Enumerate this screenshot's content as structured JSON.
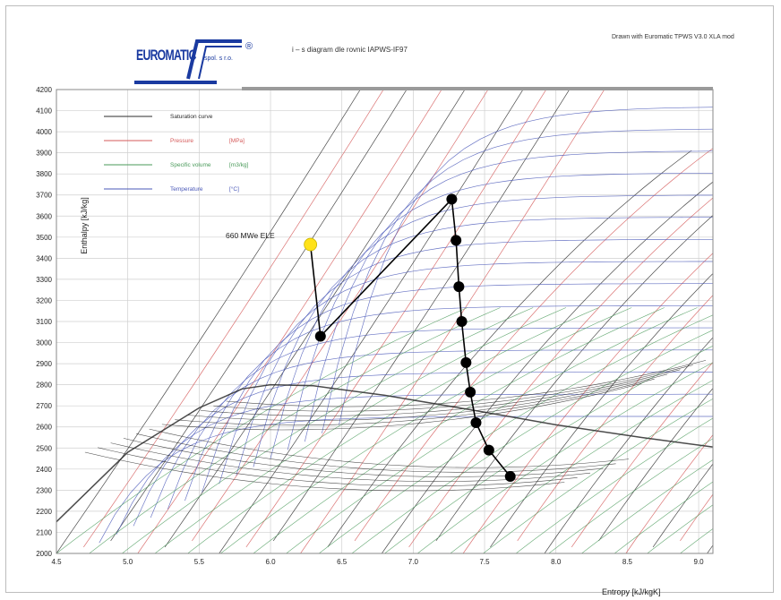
{
  "header": {
    "logo_text": "EUROMATIC",
    "logo_sub": "spol. s r.o.",
    "logo_reg": "®",
    "subtitle": "i – s diagram dle rovnic IAPWS-IF97",
    "credit": "Drawn with Euromatic TPWS V3.0 XLA mod"
  },
  "colors": {
    "line_pressure_black": "#2b2b2b",
    "line_pressure_red": "#d55a5a",
    "line_volume_green": "#4a9a5a",
    "line_temperature_blue": "#4a58b8",
    "process_path": "#000000",
    "highlight_point": "#ffe21a",
    "grid": "#cfcfcf"
  },
  "chart_data": {
    "type": "line",
    "title": "",
    "xlabel": "Entropy [kJ/kgK]",
    "ylabel": "Enthalpy [kJ/kg]",
    "xlim": [
      4.5,
      9.1
    ],
    "ylim": [
      2000,
      4200
    ],
    "x_ticks": [
      "4.5",
      "5.0",
      "5.5",
      "6.0",
      "6.5",
      "7.0",
      "7.5",
      "8.0",
      "8.5",
      "9.0"
    ],
    "y_ticks": [
      "2000",
      "2100",
      "2200",
      "2300",
      "2400",
      "2500",
      "2600",
      "2700",
      "2800",
      "2900",
      "3000",
      "3100",
      "3200",
      "3300",
      "3400",
      "3500",
      "3600",
      "3700",
      "3800",
      "3900",
      "4000",
      "4100",
      "4200"
    ],
    "grid": true,
    "legend": {
      "position": "top-left",
      "entries": [
        {
          "label": "Saturation curve",
          "unit": "",
          "color": "#2b2b2b"
        },
        {
          "label": "Pressure",
          "unit": "[MPa]",
          "color": "#d55a5a"
        },
        {
          "label": "Specific volume",
          "unit": "[m3/kg]",
          "color": "#4a9a5a"
        },
        {
          "label": "Temperature",
          "unit": "[°C]",
          "color": "#4a58b8"
        }
      ]
    },
    "annotations": [
      {
        "text": "660 MWe ELE",
        "x": 6.28,
        "y": 3465
      }
    ],
    "series": [
      {
        "name": "",
        "points": [
          {
            "x": 6.28,
            "y": 3465,
            "highlight": true
          },
          {
            "x": 6.35,
            "y": 3030
          },
          {
            "x": 7.27,
            "y": 3680
          },
          {
            "x": 7.3,
            "y": 3485
          },
          {
            "x": 7.32,
            "y": 3265
          },
          {
            "x": 7.34,
            "y": 3100
          },
          {
            "x": 7.37,
            "y": 2905
          },
          {
            "x": 7.4,
            "y": 2765
          },
          {
            "x": 7.44,
            "y": 2620
          },
          {
            "x": 7.53,
            "y": 2490
          },
          {
            "x": 7.68,
            "y": 2365
          }
        ]
      }
    ]
  }
}
